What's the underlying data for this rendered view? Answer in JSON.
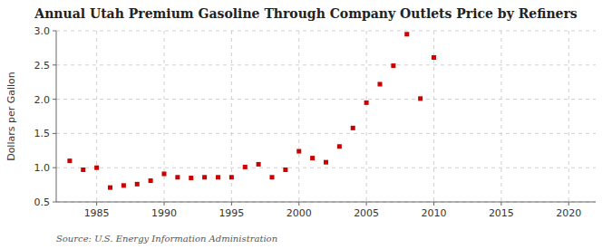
{
  "chart_data": {
    "type": "scatter",
    "title": "Annual Utah Premium Gasoline Through Company Outlets Price by Refiners",
    "y_label": "Dollars per Gallon",
    "annotations": [
      "Source: U.S. Energy Information Administration"
    ],
    "x": [
      1983,
      1984,
      1985,
      1986,
      1987,
      1988,
      1989,
      1990,
      1991,
      1992,
      1993,
      1994,
      1995,
      1996,
      1997,
      1998,
      1999,
      2000,
      2001,
      2002,
      2003,
      2004,
      2005,
      2006,
      2007,
      2008,
      2009,
      2010
    ],
    "values": [
      1.1,
      0.97,
      1.0,
      0.71,
      0.74,
      0.76,
      0.81,
      0.91,
      0.86,
      0.85,
      0.86,
      0.86,
      0.86,
      1.01,
      1.05,
      0.86,
      0.97,
      1.24,
      1.14,
      1.08,
      1.31,
      1.58,
      1.95,
      2.22,
      2.49,
      2.95,
      2.01,
      2.61
    ],
    "color": "#cc0000",
    "marker": "square",
    "xlim": [
      1982,
      2022
    ],
    "xticks": [
      1985,
      1990,
      1995,
      2000,
      2005,
      2010,
      2015,
      2020
    ],
    "ylim": [
      0.5,
      3.0
    ],
    "yticks": [
      0.5,
      {
        "value": 1.0,
        "label": "1.0"
      },
      1.5,
      {
        "value": 2.0,
        "label": "2.0"
      },
      2.5,
      {
        "value": 3.0,
        "label": "3.0"
      }
    ],
    "grid": true
  }
}
